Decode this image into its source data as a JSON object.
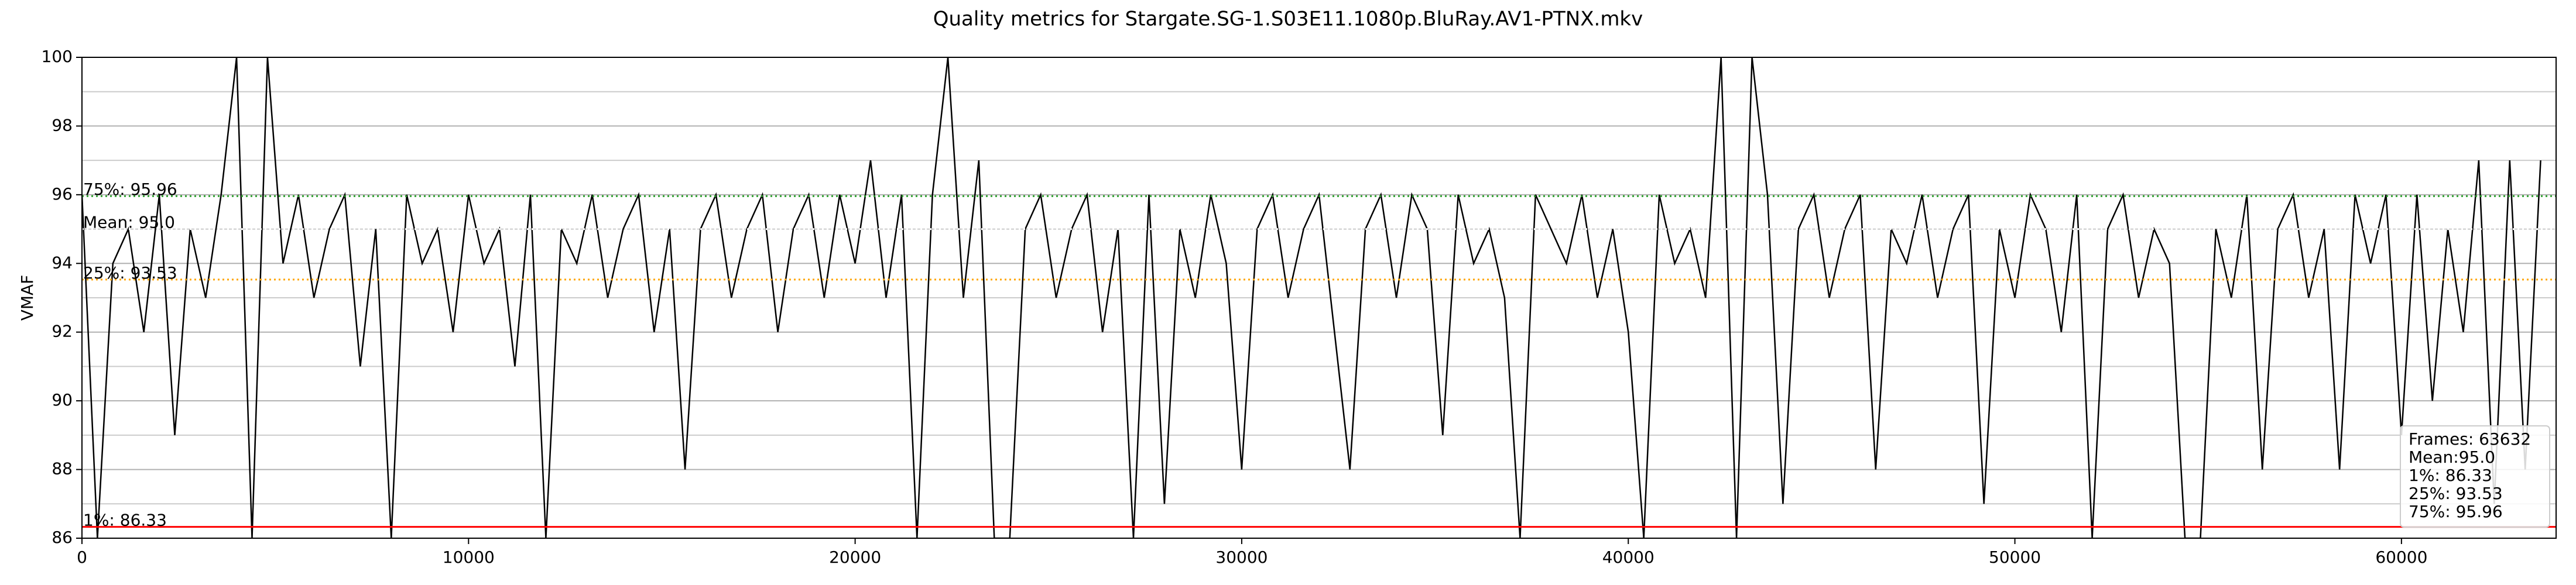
{
  "chart_data": {
    "type": "line",
    "title": "Quality metrics for Stargate.SG-1.S03E11.1080p.BluRay.AV1-PTNX.mkv",
    "ylabel": "VMAF",
    "color": "#000000",
    "x": [
      0,
      400,
      800,
      1200,
      1600,
      2000,
      2400,
      2800,
      3200,
      3600,
      4000,
      4400,
      4800,
      5200,
      5600,
      6000,
      6400,
      6800,
      7200,
      7600,
      8000,
      8400,
      8800,
      9200,
      9600,
      10000,
      10400,
      10800,
      11200,
      11600,
      12000,
      12400,
      12800,
      13200,
      13600,
      14000,
      14400,
      14800,
      15200,
      15600,
      16000,
      16400,
      16800,
      17200,
      17600,
      18000,
      18400,
      18800,
      19200,
      19600,
      20000,
      20400,
      20800,
      21200,
      21600,
      22000,
      22400,
      22800,
      23200,
      23600,
      24000,
      24400,
      24800,
      25200,
      25600,
      26000,
      26400,
      26800,
      27200,
      27600,
      28000,
      28400,
      28800,
      29200,
      29600,
      30000,
      30400,
      30800,
      31200,
      31600,
      32000,
      32400,
      32800,
      33200,
      33600,
      34000,
      34400,
      34800,
      35200,
      35600,
      36000,
      36400,
      36800,
      37200,
      37600,
      38000,
      38400,
      38800,
      39200,
      39600,
      40000,
      40400,
      40800,
      41200,
      41600,
      42000,
      42400,
      42800,
      43200,
      43600,
      44000,
      44400,
      44800,
      45200,
      45600,
      46000,
      46400,
      46800,
      47200,
      47600,
      48000,
      48400,
      48800,
      49200,
      49600,
      50000,
      50400,
      50800,
      51200,
      51600,
      52000,
      52400,
      52800,
      53200,
      53600,
      54000,
      54400,
      54800,
      55200,
      55600,
      56000,
      56400,
      56800,
      57200,
      57600,
      58000,
      58400,
      58800,
      59200,
      59600,
      60000,
      60400,
      60800,
      61200,
      61600,
      62000,
      62400,
      62800,
      63200,
      63600
    ],
    "values": [
      96,
      86,
      94,
      95,
      92,
      96,
      89,
      95,
      93,
      96,
      100,
      86,
      100,
      94,
      96,
      93,
      95,
      96,
      91,
      95,
      86,
      96,
      94,
      95,
      92,
      96,
      94,
      95,
      91,
      96,
      86,
      95,
      94,
      96,
      93,
      95,
      96,
      92,
      95,
      88,
      95,
      96,
      93,
      95,
      96,
      92,
      95,
      96,
      93,
      96,
      94,
      97,
      93,
      96,
      86,
      96,
      100,
      93,
      97,
      86,
      86,
      95,
      96,
      93,
      95,
      96,
      92,
      95,
      86,
      96,
      87,
      95,
      93,
      96,
      94,
      88,
      95,
      96,
      93,
      95,
      96,
      92,
      88,
      95,
      96,
      93,
      96,
      95,
      89,
      96,
      94,
      95,
      93,
      86,
      96,
      95,
      94,
      96,
      93,
      95,
      92,
      86,
      96,
      94,
      95,
      93,
      100,
      86,
      100,
      96,
      87,
      95,
      96,
      93,
      95,
      96,
      88,
      95,
      94,
      96,
      93,
      95,
      96,
      87,
      95,
      93,
      96,
      95,
      92,
      96,
      86,
      95,
      96,
      93,
      95,
      94,
      86,
      86,
      95,
      93,
      96,
      88,
      95,
      96,
      93,
      95,
      88,
      96,
      94,
      96,
      89,
      96,
      90,
      95,
      92,
      97,
      87,
      97,
      88,
      97
    ],
    "xlim": [
      0,
      64000
    ],
    "xticks": [
      0,
      10000,
      20000,
      30000,
      40000,
      50000,
      60000
    ],
    "ylim": [
      86,
      100
    ],
    "yticks": [
      86,
      88,
      90,
      92,
      94,
      96,
      98,
      100
    ],
    "yminorticks": [
      87,
      89,
      91,
      93,
      95,
      97,
      99
    ],
    "grid": true,
    "reference_lines": [
      {
        "label": "75%: 95.96",
        "value": 95.96,
        "color": "#2ca02c",
        "style": "dotted"
      },
      {
        "label": "Mean: 95.0",
        "value": 95.0,
        "color": "#ffffff",
        "style": "dotted"
      },
      {
        "label": "25%: 93.53",
        "value": 93.53,
        "color": "#ffa500",
        "style": "dotted"
      },
      {
        "label": "1%: 86.33",
        "value": 86.33,
        "color": "#ff0000",
        "style": "solid"
      }
    ],
    "stats_box": [
      "Frames: 63632",
      "Mean:95.0",
      "1%: 86.33",
      "25%: 93.53",
      "75%: 95.96"
    ],
    "legend_position": "lower right"
  }
}
